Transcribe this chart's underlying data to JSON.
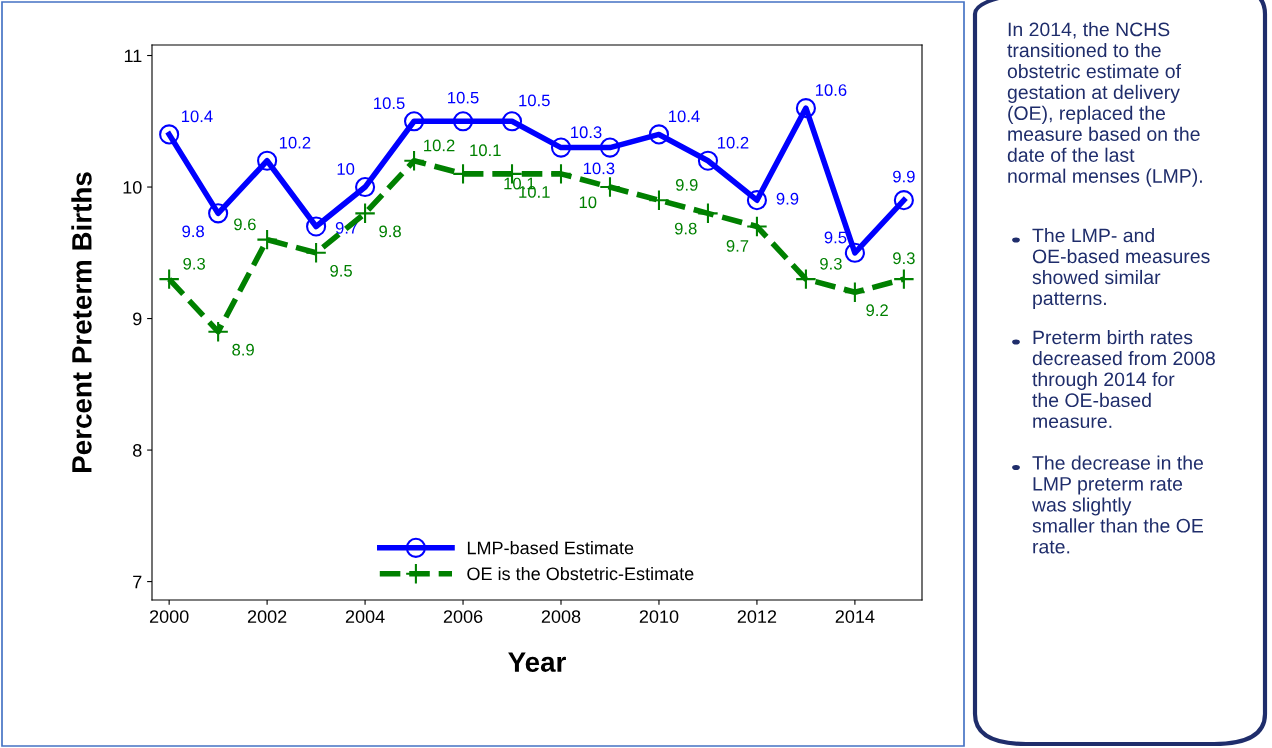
{
  "chart_data": {
    "type": "line",
    "xlabel": "Year",
    "ylabel": "Percent Preterm Births",
    "x": [
      2000,
      2001,
      2002,
      2003,
      2004,
      2005,
      2006,
      2007,
      2008,
      2009,
      2010,
      2011,
      2012,
      2013,
      2014,
      2015
    ],
    "series": [
      {
        "name": "LMP-based Estimate",
        "color": "#0000ff",
        "marker": "circle",
        "line_style": "solid",
        "values": [
          10.4,
          9.8,
          10.2,
          9.7,
          10,
          10.5,
          10.5,
          10.5,
          10.3,
          10.3,
          10.4,
          10.2,
          9.9,
          10.6,
          9.5,
          9.9
        ]
      },
      {
        "name": "OE is the Obstetric-Estimate",
        "color": "#008000",
        "marker": "cross",
        "line_style": "dashed",
        "values": [
          9.3,
          8.9,
          9.6,
          9.5,
          9.8,
          10.2,
          10.1,
          10.1,
          10.1,
          10,
          9.9,
          9.8,
          9.7,
          9.3,
          9.2,
          9.3
        ]
      }
    ],
    "xlim": [
      1999.65,
      2015.37
    ],
    "xticks": [
      2000,
      2002,
      2004,
      2006,
      2008,
      2010,
      2012,
      2014
    ],
    "ylim": [
      6.86,
      11.08
    ],
    "yticks": [
      7,
      8,
      9,
      10,
      11
    ],
    "data_labels": true,
    "grid": false,
    "legend": "bottom",
    "annotations": [
      "In 2014, the NCHS transitioned to the obstetric estimate of gestation at delivery (OE), replaced the measure based on the date of the last normal menses (LMP).",
      "The LMP- and OE-based measures showed similar patterns.",
      "Preterm birth rates decreased from 2008 through 2014 for the OE-based measure.",
      "The decrease in the LMP preterm rate was slightly smaller than the OE rate."
    ]
  }
}
